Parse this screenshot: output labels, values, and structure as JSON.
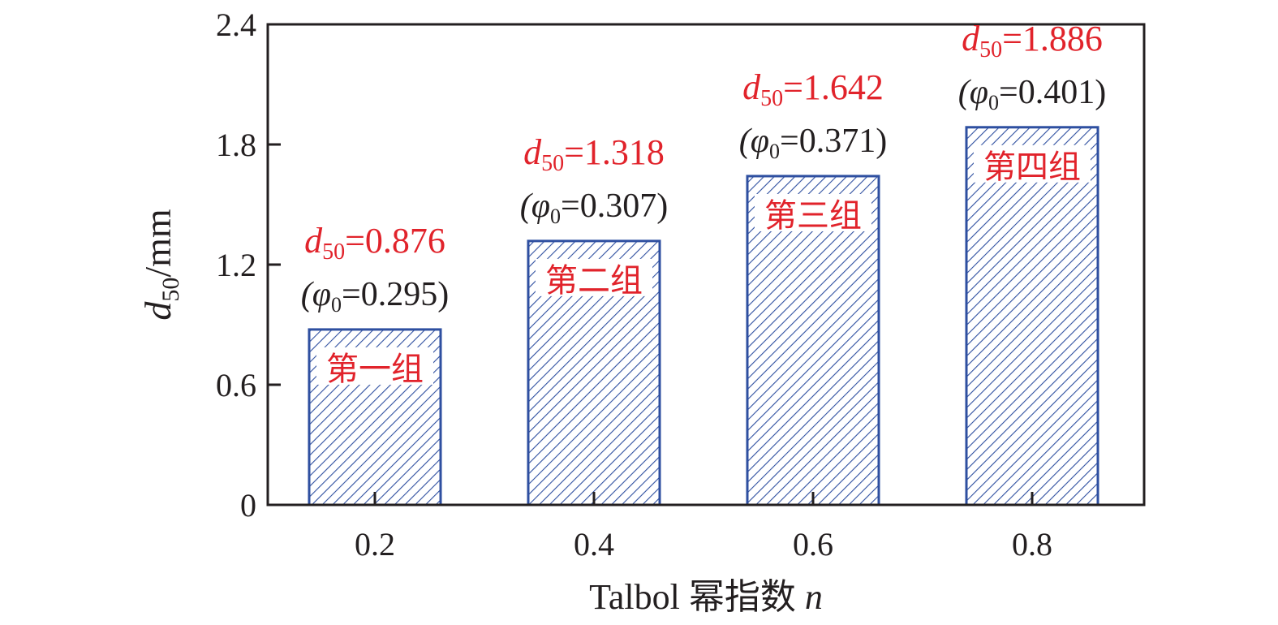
{
  "chart_data": {
    "type": "bar",
    "title": "",
    "xlabel": "Talbol 幂指数 n",
    "xlabel_main": "Talbol 幂指数 ",
    "xlabel_var": "n",
    "ylabel": "d50/mm",
    "ylabel_var": "d",
    "ylabel_sub": "50",
    "ylabel_unit": "/mm",
    "ylim": [
      0,
      2.4
    ],
    "yticks": [
      "0",
      "0.6",
      "1.2",
      "1.8",
      "2.4"
    ],
    "ytick_values": [
      0,
      0.6,
      1.2,
      1.8,
      2.4
    ],
    "categories": [
      "0.2",
      "0.4",
      "0.6",
      "0.8"
    ],
    "values": [
      0.876,
      1.318,
      1.642,
      1.886
    ],
    "group_labels": [
      "第一组",
      "第二组",
      "第三组",
      "第四组"
    ],
    "d50_labels": [
      "=0.876",
      "=1.318",
      "=1.642",
      "=1.886"
    ],
    "phi0_labels": [
      "=0.295)",
      "=0.307)",
      "=0.371)",
      "=0.401)"
    ],
    "label_d": "d",
    "label_sub": "50",
    "label_phi_open": "(φ",
    "label_phi_sub": "0",
    "bar_color": "#2e4fa0",
    "label_color": "#e1232b",
    "hatch": "diagonal",
    "grid": false
  }
}
